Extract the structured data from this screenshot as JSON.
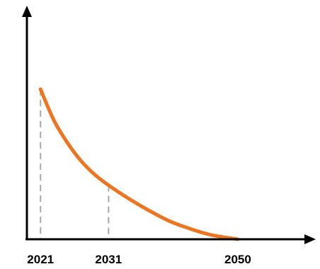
{
  "chart_data": {
    "type": "line",
    "title": "",
    "xlabel": "",
    "ylabel": "",
    "x_ticks": [
      "2021",
      "2031",
      "2050"
    ],
    "series": [
      {
        "x": [
          2021,
          2023,
          2025,
          2027,
          2029,
          2031,
          2034,
          2037,
          2040,
          2043,
          2046,
          2050
        ],
        "y": [
          100,
          79,
          64,
          52,
          43,
          36,
          27,
          19,
          12,
          7,
          3,
          0
        ]
      }
    ],
    "markers": [
      {
        "x": 2021,
        "y": 100
      },
      {
        "x": 2031,
        "y": 36
      }
    ],
    "xlim": [
      2019,
      2060
    ],
    "ylim": [
      0,
      150
    ],
    "grid": false,
    "colors": {
      "series": "#ED7522",
      "axis": "#000000",
      "guide": "#A8A8A8"
    }
  }
}
